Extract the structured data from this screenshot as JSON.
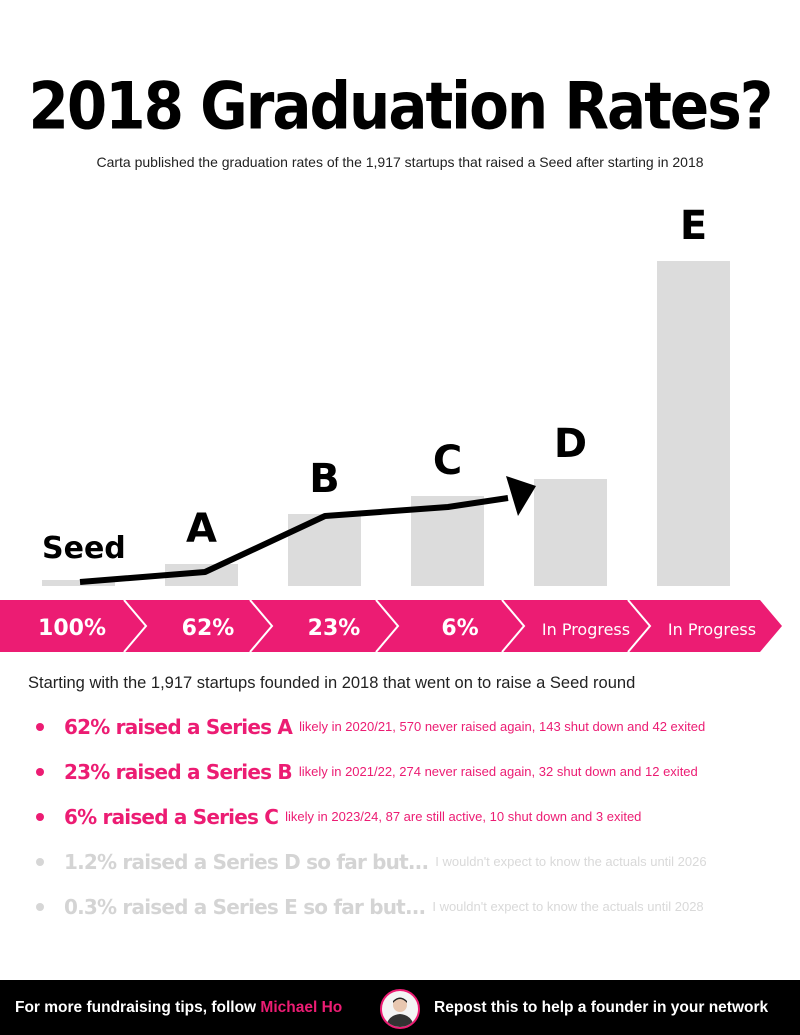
{
  "title": "2018 Graduation Rates?",
  "subtitle": "Carta published the graduation rates of the 1,917 startups that raised a Seed after starting in 2018",
  "chart_data": {
    "type": "bar",
    "categories": [
      "Seed",
      "A",
      "B",
      "C",
      "D",
      "E"
    ],
    "values": [
      100,
      62,
      23,
      6,
      null,
      null
    ],
    "value_labels": [
      "100%",
      "62%",
      "23%",
      "6%",
      "In Progress",
      "In Progress"
    ],
    "title": "2018 Graduation Rates?",
    "xlabel": "",
    "ylabel": "",
    "grid": false,
    "legend": "none",
    "arrow_trend": true,
    "colors": {
      "bar": "#dcdcdc",
      "banner": "#ec1c73",
      "arrow": "#000000"
    }
  },
  "intro": "Starting with the 1,917 startups founded in 2018 that went on to raise a Seed round",
  "bullets": [
    {
      "headline": "62% raised a Series A",
      "detail": "likely in 2020/21, 570 never raised again, 143 shut down and 42 exited",
      "faded": false
    },
    {
      "headline": "23% raised a Series B",
      "detail": "likely in 2021/22, 274 never raised again, 32 shut down and 12 exited",
      "faded": false
    },
    {
      "headline": "6% raised a Series C",
      "detail": "likely in 2023/24, 87 are still active, 10 shut down and 3 exited",
      "faded": false
    },
    {
      "headline": "1.2% raised a Series D so far but...",
      "detail": "I wouldn't expect to know the actuals until 2026",
      "faded": true
    },
    {
      "headline": "0.3% raised a Series E so far but...",
      "detail": "I wouldn't expect to know the actuals until 2028",
      "faded": true
    }
  ],
  "footer": {
    "left_prefix": "For more fundraising tips, follow ",
    "left_name": "Michael Ho",
    "right": "Repost this to help a founder in your network",
    "avatar_icon": "person-avatar-icon"
  },
  "colors": {
    "accent": "#ec1c73",
    "bar": "#dcdcdc",
    "footer_bg": "#000000"
  }
}
